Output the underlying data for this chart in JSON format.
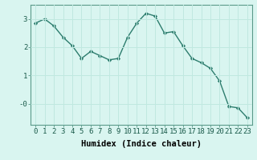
{
  "x": [
    0,
    1,
    2,
    3,
    4,
    5,
    6,
    7,
    8,
    9,
    10,
    11,
    12,
    13,
    14,
    15,
    16,
    17,
    18,
    19,
    20,
    21,
    22,
    23
  ],
  "y": [
    2.85,
    3.0,
    2.75,
    2.35,
    2.05,
    1.6,
    1.85,
    1.7,
    1.55,
    1.6,
    2.35,
    2.85,
    3.2,
    3.1,
    2.5,
    2.55,
    2.05,
    1.6,
    1.45,
    1.25,
    0.8,
    -0.1,
    -0.15,
    -0.5
  ],
  "line_color": "#2d7d6e",
  "marker": "D",
  "marker_size": 2.2,
  "bg_color": "#d9f5f0",
  "grid_color": "#c0e8e0",
  "xlabel": "Humidex (Indice chaleur)",
  "ylim": [
    -0.75,
    3.5
  ],
  "xlim": [
    -0.5,
    23.5
  ],
  "ytick_vals": [
    0,
    1,
    2,
    3
  ],
  "ytick_labels": [
    "-0",
    "1",
    "2",
    "3"
  ],
  "xticks": [
    0,
    1,
    2,
    3,
    4,
    5,
    6,
    7,
    8,
    9,
    10,
    11,
    12,
    13,
    14,
    15,
    16,
    17,
    18,
    19,
    20,
    21,
    22,
    23
  ],
  "xlabel_fontsize": 7.5,
  "tick_fontsize": 6.5,
  "line_width": 1.0,
  "spine_color": "#5a9a8a"
}
